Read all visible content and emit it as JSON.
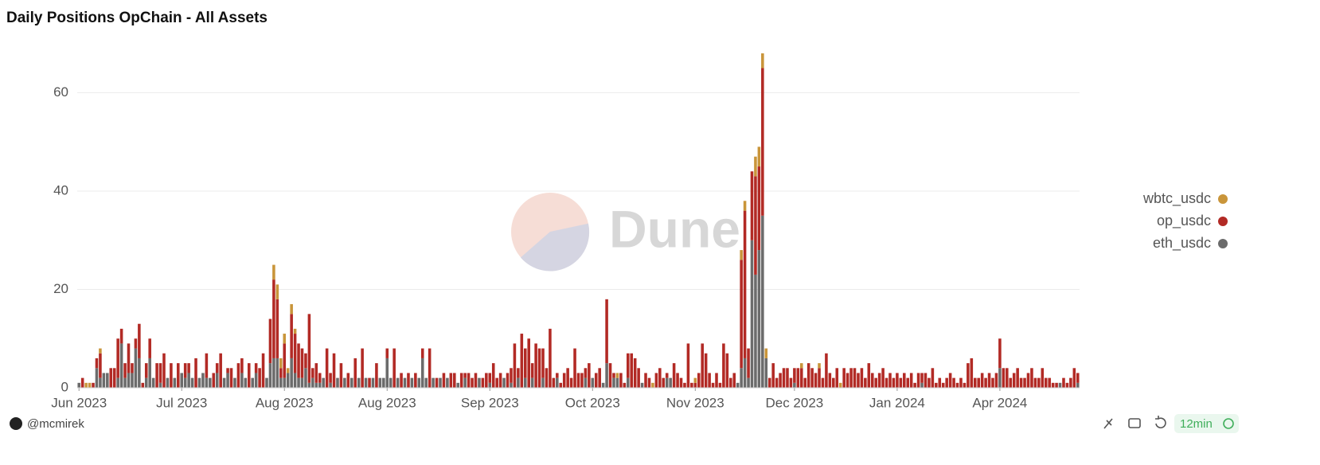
{
  "chart_data": {
    "type": "stacked_bar",
    "title": "Daily Positions OpChain - All Assets",
    "watermark": "Dune",
    "author": "@mcmirek",
    "refresh": "12min",
    "ylim": [
      0,
      68
    ],
    "yticks": [
      0,
      20,
      40,
      60
    ],
    "grid": true,
    "legend": "right",
    "xticks": [
      {
        "value": 0,
        "label": "Jun 2023"
      },
      {
        "value": 29,
        "label": "Jul 2023"
      },
      {
        "value": 58,
        "label": "Aug 2023"
      },
      {
        "value": 87,
        "label": "Aug 2023"
      },
      {
        "value": 116,
        "label": "Sep 2023"
      },
      {
        "value": 145,
        "label": "Oct 2023"
      },
      {
        "value": 174,
        "label": "Nov 2023"
      },
      {
        "value": 202,
        "label": "Dec 2023"
      },
      {
        "value": 231,
        "label": "Jan 2024"
      },
      {
        "value": 260,
        "label": "Apr 2024"
      }
    ],
    "series": [
      {
        "name": "eth_usdc",
        "color": "#6b6b6b",
        "values": [
          1,
          0,
          0,
          0,
          0,
          4,
          2,
          3,
          3,
          0,
          0,
          2,
          9,
          2,
          3,
          3,
          8,
          6,
          0,
          2,
          6,
          2,
          0,
          1,
          0,
          2,
          0,
          2,
          0,
          3,
          2,
          3,
          2,
          0,
          2,
          3,
          2,
          2,
          0,
          3,
          0,
          2,
          3,
          0,
          2,
          0,
          3,
          2,
          0,
          2,
          3,
          0,
          0,
          2,
          5,
          6,
          6,
          2,
          2,
          3,
          6,
          3,
          2,
          2,
          4,
          1,
          2,
          1,
          1,
          2,
          0,
          1,
          0,
          2,
          0,
          2,
          0,
          2,
          0,
          2,
          0,
          2,
          0,
          2,
          0,
          2,
          2,
          6,
          2,
          0,
          2,
          0,
          2,
          0,
          2,
          0,
          2,
          6,
          2,
          0,
          2,
          0,
          2,
          0,
          2,
          0,
          0,
          1,
          0,
          2,
          0,
          0,
          0,
          2,
          0,
          0,
          1,
          0,
          0,
          0,
          2,
          0,
          1,
          0,
          2,
          0,
          2,
          0,
          2,
          0,
          0,
          2,
          0,
          0,
          0,
          2,
          0,
          0,
          0,
          0,
          0,
          0,
          0,
          2,
          0,
          2,
          0,
          0,
          1,
          5,
          0,
          2,
          2,
          0,
          0,
          2,
          0,
          0,
          0,
          1,
          0,
          0,
          0,
          0,
          0,
          0,
          2,
          2,
          0,
          0,
          0,
          0,
          0,
          0,
          0,
          0,
          0,
          0,
          0,
          0,
          0,
          0,
          0,
          0,
          0,
          0,
          1,
          4,
          6,
          2,
          30,
          23,
          28,
          35,
          6,
          0,
          0,
          0,
          0,
          0,
          0,
          0,
          1,
          0,
          0,
          0,
          0,
          0,
          0,
          0,
          0,
          0,
          0,
          0,
          0,
          0,
          0,
          0,
          0,
          0,
          0,
          0,
          0,
          0,
          0,
          0,
          0,
          0,
          0,
          0,
          0,
          0,
          0,
          0,
          0,
          0,
          0,
          0,
          1,
          0,
          0,
          0,
          0,
          0,
          0,
          0,
          0,
          0,
          0,
          0,
          0,
          0,
          0,
          0,
          0,
          0,
          0,
          0,
          0,
          0,
          4,
          0,
          0,
          0,
          0,
          0,
          0,
          0,
          0,
          0,
          0,
          0,
          0,
          0,
          0,
          0,
          0,
          1,
          0,
          0,
          0,
          0,
          1
        ]
      },
      {
        "name": "op_usdc",
        "color": "#b22a25",
        "values": [
          0,
          2,
          0,
          0,
          1,
          2,
          5,
          0,
          0,
          4,
          4,
          8,
          3,
          3,
          6,
          2,
          2,
          7,
          1,
          3,
          4,
          0,
          5,
          4,
          7,
          0,
          5,
          0,
          5,
          0,
          3,
          2,
          0,
          6,
          0,
          0,
          5,
          0,
          3,
          2,
          7,
          0,
          1,
          4,
          0,
          5,
          3,
          0,
          5,
          0,
          2,
          4,
          7,
          0,
          9,
          16,
          12,
          2,
          7,
          0,
          9,
          8,
          7,
          6,
          3,
          14,
          2,
          4,
          2,
          0,
          8,
          2,
          7,
          0,
          5,
          0,
          3,
          0,
          6,
          0,
          8,
          0,
          2,
          0,
          5,
          0,
          0,
          2,
          0,
          8,
          0,
          3,
          0,
          3,
          0,
          3,
          0,
          2,
          0,
          8,
          0,
          2,
          0,
          3,
          0,
          3,
          3,
          0,
          3,
          1,
          3,
          2,
          3,
          0,
          2,
          3,
          2,
          5,
          2,
          3,
          0,
          3,
          3,
          9,
          2,
          11,
          6,
          10,
          3,
          9,
          8,
          6,
          4,
          12,
          2,
          1,
          1,
          3,
          4,
          2,
          8,
          3,
          3,
          2,
          5,
          0,
          3,
          4,
          0,
          13,
          5,
          1,
          0,
          3,
          1,
          5,
          7,
          6,
          4,
          0,
          3,
          2,
          0,
          3,
          4,
          2,
          1,
          0,
          5,
          3,
          2,
          1,
          9,
          1,
          1,
          3,
          9,
          7,
          3,
          1,
          3,
          1,
          9,
          7,
          2,
          3,
          0,
          22,
          30,
          6,
          14,
          20,
          17,
          30,
          0,
          2,
          5,
          2,
          3,
          4,
          4,
          2,
          3,
          4,
          4,
          2,
          5,
          4,
          3,
          4,
          2,
          7,
          3,
          2,
          4,
          0,
          4,
          3,
          4,
          4,
          3,
          4,
          2,
          5,
          3,
          2,
          3,
          4,
          2,
          3,
          2,
          3,
          2,
          3,
          2,
          3,
          1,
          3,
          2,
          3,
          2,
          4,
          1,
          2,
          1,
          2,
          3,
          2,
          1,
          2,
          1,
          5,
          6,
          2,
          2,
          3,
          2,
          3,
          2,
          3,
          6,
          4,
          4,
          2,
          3,
          4,
          2,
          2,
          3,
          4,
          2,
          2,
          4,
          2,
          2,
          1,
          1,
          0,
          2,
          1,
          2,
          4,
          2
        ]
      },
      {
        "name": "wbtc_usdc",
        "color": "#c9953a",
        "values": [
          0,
          0,
          1,
          1,
          0,
          0,
          1,
          0,
          0,
          0,
          0,
          0,
          0,
          0,
          0,
          0,
          0,
          0,
          0,
          0,
          0,
          0,
          0,
          0,
          0,
          0,
          0,
          0,
          0,
          0,
          0,
          0,
          0,
          0,
          0,
          0,
          0,
          0,
          0,
          0,
          0,
          0,
          0,
          0,
          0,
          0,
          0,
          0,
          0,
          0,
          0,
          0,
          0,
          0,
          0,
          3,
          3,
          2,
          2,
          1,
          2,
          1,
          0,
          0,
          0,
          0,
          0,
          0,
          0,
          0,
          0,
          0,
          0,
          0,
          0,
          0,
          0,
          0,
          0,
          0,
          0,
          0,
          0,
          0,
          0,
          0,
          0,
          0,
          0,
          0,
          0,
          0,
          0,
          0,
          0,
          0,
          0,
          0,
          0,
          0,
          0,
          0,
          0,
          0,
          0,
          0,
          0,
          0,
          0,
          0,
          0,
          0,
          0,
          0,
          0,
          0,
          0,
          0,
          0,
          0,
          0,
          0,
          0,
          0,
          0,
          0,
          0,
          0,
          0,
          0,
          0,
          0,
          0,
          0,
          0,
          0,
          0,
          0,
          0,
          0,
          0,
          0,
          0,
          0,
          0,
          0,
          0,
          0,
          0,
          0,
          0,
          0,
          1,
          0,
          0,
          0,
          0,
          0,
          0,
          0,
          0,
          0,
          1,
          0,
          0,
          0,
          0,
          0,
          0,
          0,
          0,
          0,
          0,
          0,
          1,
          0,
          0,
          0,
          0,
          0,
          0,
          0,
          0,
          0,
          0,
          0,
          0,
          2,
          2,
          0,
          0,
          4,
          4,
          3,
          2,
          0,
          0,
          0,
          0,
          0,
          0,
          0,
          0,
          0,
          1,
          0,
          0,
          0,
          0,
          1,
          0,
          0,
          0,
          0,
          0,
          1,
          0,
          0,
          0,
          0,
          0,
          0,
          0,
          0,
          0,
          0,
          0,
          0,
          0,
          0,
          0,
          0,
          0,
          0,
          0,
          0,
          0,
          0,
          0,
          0,
          0,
          0,
          0,
          0,
          0,
          0,
          0,
          0,
          0,
          0,
          0,
          0,
          0,
          0,
          0,
          0,
          0,
          0,
          0,
          0,
          0,
          0,
          0,
          0,
          0,
          0,
          0,
          0,
          0,
          0,
          0,
          0,
          0,
          0,
          0,
          0,
          0,
          0,
          0,
          0,
          0,
          0,
          0
        ]
      }
    ]
  }
}
